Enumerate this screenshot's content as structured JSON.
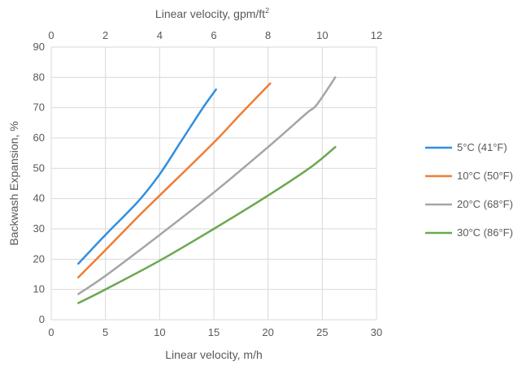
{
  "chart_data": {
    "type": "line",
    "xlabel": "Linear velocity, m/h",
    "x2label": "Linear velocity, gpm/ft",
    "x2label_sup": "2",
    "ylabel": "Backwash Expansion, %",
    "xlim": [
      0,
      30
    ],
    "ylim": [
      0,
      90
    ],
    "x2lim": [
      0,
      12
    ],
    "x_ticks": [
      0,
      5,
      10,
      15,
      20,
      25,
      30
    ],
    "x2_ticks": [
      0,
      2,
      4,
      6,
      8,
      10,
      12
    ],
    "y_ticks": [
      0,
      10,
      20,
      30,
      40,
      50,
      60,
      70,
      80,
      90
    ],
    "grid": true,
    "legend_position": "right",
    "series": [
      {
        "name": "5°C (41°F)",
        "color": "#2f8fe0",
        "points": [
          [
            2.5,
            18.5
          ],
          [
            5,
            28
          ],
          [
            8,
            39
          ],
          [
            10,
            48
          ],
          [
            12,
            59
          ],
          [
            14,
            70
          ],
          [
            15.2,
            76
          ]
        ]
      },
      {
        "name": "10°C (50°F)",
        "color": "#f07d33",
        "points": [
          [
            2.5,
            14
          ],
          [
            5,
            23
          ],
          [
            8,
            34
          ],
          [
            10,
            41
          ],
          [
            15,
            58.5
          ],
          [
            17.5,
            68
          ],
          [
            20.2,
            78
          ]
        ]
      },
      {
        "name": "20°C (68°F)",
        "color": "#a5a5a5",
        "points": [
          [
            2.5,
            8.5
          ],
          [
            5,
            14.5
          ],
          [
            10,
            28
          ],
          [
            15,
            42
          ],
          [
            20,
            57
          ],
          [
            23.5,
            68
          ],
          [
            24.5,
            71
          ],
          [
            26.2,
            80
          ]
        ]
      },
      {
        "name": "30°C (86°F)",
        "color": "#6aa84f",
        "points": [
          [
            2.5,
            5.5
          ],
          [
            5,
            10
          ],
          [
            10,
            19.5
          ],
          [
            15,
            30
          ],
          [
            20,
            41
          ],
          [
            24,
            50.5
          ],
          [
            26.2,
            57
          ]
        ]
      }
    ]
  }
}
